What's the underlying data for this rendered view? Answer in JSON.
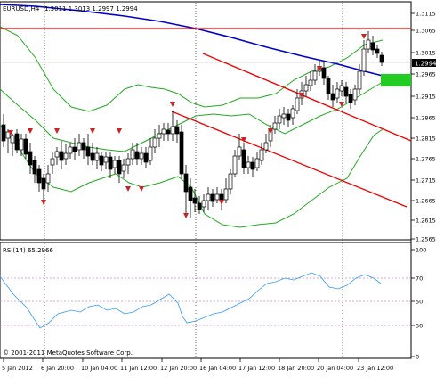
{
  "main": {
    "symbol": "EURUSD,H4",
    "ohlc": "1.3011 1.3013 1.2997 1.2994",
    "current_price": "1.2994",
    "price_ticks": [
      "1.3115",
      "1.3065",
      "1.3015",
      "1.2965",
      "1.2915",
      "1.2865",
      "1.2815",
      "1.2765",
      "1.2715",
      "1.2665",
      "1.2615",
      "1.2565"
    ]
  },
  "rsi": {
    "label": "RSI(14) 65.2966",
    "ticks": [
      "100",
      "70",
      "50",
      "30",
      "0"
    ]
  },
  "watermark": "© 2001-2011 MetaQuotes Software Corp.",
  "time_axis": [
    "5 Jan 2012",
    "6 Jan 20:00",
    "10 Jan 04:00",
    "11 Jan 12:00",
    "12 Jan 20:00",
    "16 Jan 04:00",
    "17 Jan 12:00",
    "18 Jan 20:00",
    "20 Jan 04:00",
    "23 Jan 12:00"
  ],
  "colors": {
    "bull": "#ffffff",
    "bear": "#000000",
    "bands": "#22aa22",
    "moving_average": "#0000cc",
    "channel": "#ee0000",
    "rsi_line": "#3399ff",
    "rsi_levels": "#cc88cc",
    "arrow": "#cc2222",
    "price_label_bg": "#000000",
    "highlight": "#22cc22"
  }
}
